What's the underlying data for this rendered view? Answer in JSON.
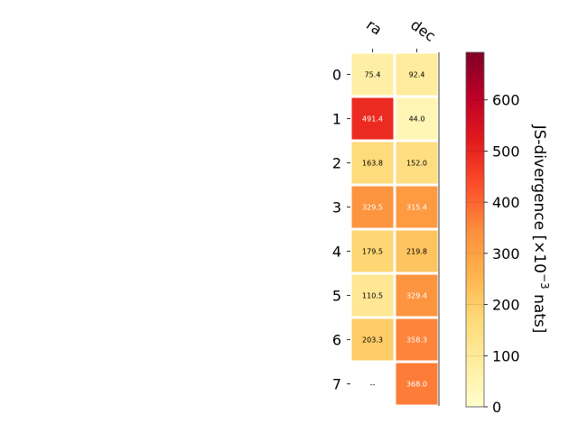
{
  "chart_data": {
    "type": "heatmap",
    "columns": [
      "ra",
      "dec"
    ],
    "rows": [
      "0",
      "1",
      "2",
      "3",
      "4",
      "5",
      "6",
      "7"
    ],
    "values": [
      [
        75.4,
        92.4
      ],
      [
        491.4,
        44.0
      ],
      [
        163.8,
        152.0
      ],
      [
        329.5,
        315.4
      ],
      [
        179.5,
        219.8
      ],
      [
        110.5,
        329.4
      ],
      [
        203.3,
        358.3
      ],
      [
        null,
        368.0
      ]
    ],
    "cell_labels": [
      [
        "75.4",
        "92.4"
      ],
      [
        "491.4",
        "44.0"
      ],
      [
        "163.8",
        "152.0"
      ],
      [
        "329.5",
        "315.4"
      ],
      [
        "179.5",
        "219.8"
      ],
      [
        "110.5",
        "329.4"
      ],
      [
        "203.3",
        "358.3"
      ],
      [
        "--",
        "368.0"
      ]
    ],
    "colorbar": {
      "label_main": "JS-divergence [×10",
      "label_exp": "−3",
      "label_tail": " nats]",
      "range": [
        0,
        693
      ],
      "ticks": [
        0,
        100,
        200,
        300,
        400,
        500,
        600
      ],
      "tick_labels": [
        "0",
        "100",
        "200",
        "300",
        "400",
        "500",
        "600"
      ],
      "colormap": "YlOrRd"
    },
    "grid": false
  }
}
